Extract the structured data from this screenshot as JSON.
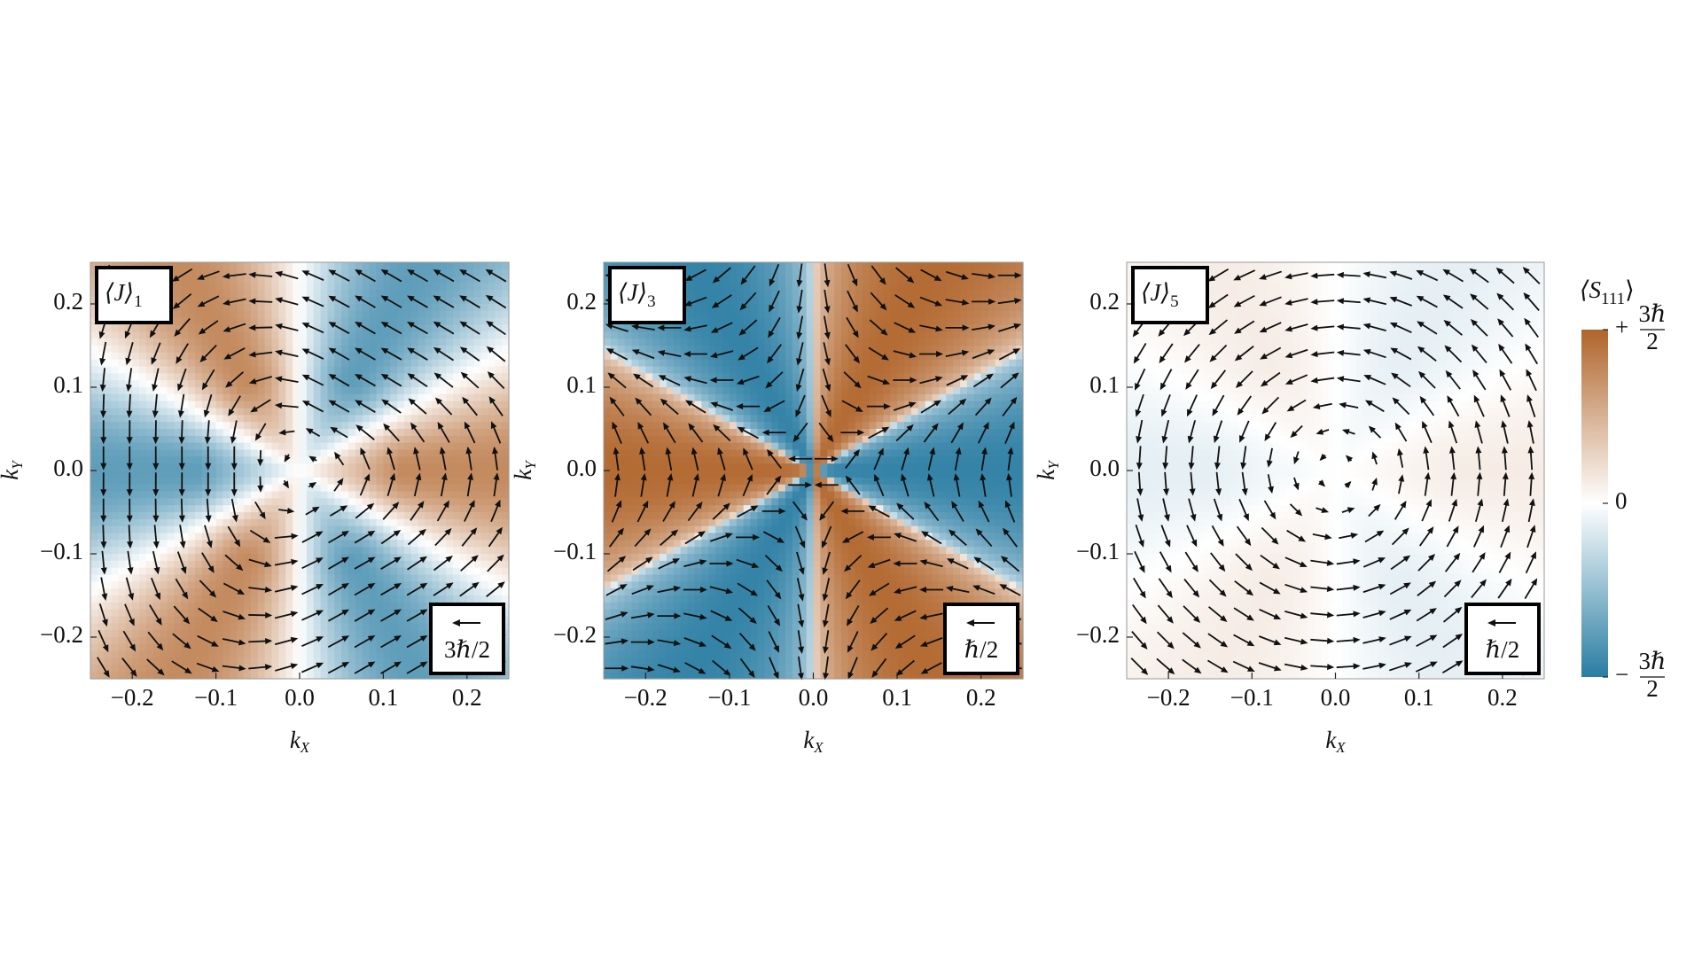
{
  "chart_data": [
    {
      "type": "vector-field",
      "label": "⟨J⟩",
      "label_sub": "1",
      "scale_label": "3ℏ/2",
      "x_label": "k",
      "x_label_sub": "X",
      "y_label": "k",
      "y_label_sub": "Y",
      "xlim": [
        -0.25,
        0.25
      ],
      "ylim": [
        -0.25,
        0.25
      ],
      "xticks": [
        {
          "value": -0.2,
          "label": "−0.2"
        },
        {
          "value": -0.1,
          "label": "−0.1"
        },
        {
          "value": 0,
          "label": "0.0"
        },
        {
          "value": 0.1,
          "label": "0.1"
        },
        {
          "value": 0.2,
          "label": "0.2"
        }
      ],
      "yticks": [
        {
          "value": -0.2,
          "label": "−0.2"
        },
        {
          "value": -0.1,
          "label": "−0.1"
        },
        {
          "value": 0,
          "label": "0.0"
        },
        {
          "value": 0.1,
          "label": "0.1"
        },
        {
          "value": 0.2,
          "label": "0.2"
        }
      ]
    },
    {
      "type": "vector-field",
      "label": "⟨J⟩",
      "label_sub": "3",
      "scale_label": "ℏ/2",
      "x_label": "k",
      "x_label_sub": "X",
      "y_label": "k",
      "y_label_sub": "Y",
      "xlim": [
        -0.25,
        0.25
      ],
      "ylim": [
        -0.25,
        0.25
      ],
      "xticks": [
        {
          "value": -0.2,
          "label": "−0.2"
        },
        {
          "value": -0.1,
          "label": "−0.1"
        },
        {
          "value": 0,
          "label": "0.0"
        },
        {
          "value": 0.1,
          "label": "0.1"
        },
        {
          "value": 0.2,
          "label": "0.2"
        }
      ],
      "yticks": [
        {
          "value": -0.2,
          "label": "−0.2"
        },
        {
          "value": -0.1,
          "label": "−0.1"
        },
        {
          "value": 0,
          "label": "0.0"
        },
        {
          "value": 0.1,
          "label": "0.1"
        },
        {
          "value": 0.2,
          "label": "0.2"
        }
      ]
    },
    {
      "type": "vector-field",
      "label": "⟨J⟩",
      "label_sub": "5",
      "scale_label": "ℏ/2",
      "x_label": "k",
      "x_label_sub": "X",
      "y_label": "k",
      "y_label_sub": "Y",
      "xlim": [
        -0.25,
        0.25
      ],
      "ylim": [
        -0.25,
        0.25
      ],
      "xticks": [
        {
          "value": -0.2,
          "label": "−0.2"
        },
        {
          "value": -0.1,
          "label": "−0.1"
        },
        {
          "value": 0,
          "label": "0.0"
        },
        {
          "value": 0.1,
          "label": "0.1"
        },
        {
          "value": 0.2,
          "label": "0.2"
        }
      ],
      "yticks": [
        {
          "value": -0.2,
          "label": "−0.2"
        },
        {
          "value": -0.1,
          "label": "−0.1"
        },
        {
          "value": 0,
          "label": "0.0"
        },
        {
          "value": 0.1,
          "label": "0.1"
        },
        {
          "value": 0.2,
          "label": "0.2"
        }
      ]
    },
    {
      "type": "colorbar",
      "title": "⟨S",
      "title_sub": "111",
      "title_end": "⟩",
      "lim": [
        -1.5,
        1.5
      ],
      "colors": [
        "#2a7da3",
        "#ffffff",
        "#b0642a"
      ],
      "ticks": [
        {
          "value": -1.5,
          "label": "−",
          "frac_top": "3ℏ",
          "frac_bottom": "2"
        },
        {
          "value": 0,
          "label": "0"
        },
        {
          "value": 1.5,
          "label": "+",
          "frac_top": "3ℏ",
          "frac_bottom": "2"
        }
      ]
    }
  ]
}
